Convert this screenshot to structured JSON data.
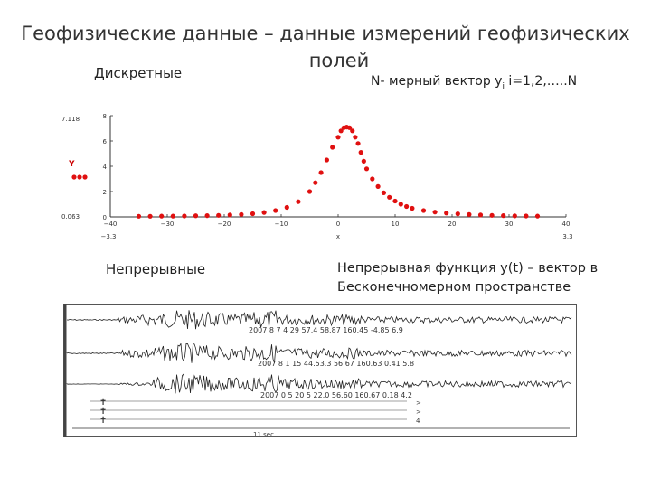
{
  "title": {
    "line1": "Геофизические данные – данные измерений геофизических",
    "line2": "полей"
  },
  "discrete_label": "Дискретные",
  "vector_label": {
    "prefix": "N- мерный вектор y",
    "sub": "i",
    "suffix": " i=1,2,…..N"
  },
  "continuous_label": "Непрерывные",
  "continuous_desc": {
    "line1": "Непрерывная функция y(t) – вектор в",
    "line2": "Бесконечномерном пространстве"
  },
  "chart_data": {
    "type": "scatter",
    "xlim": [
      -40,
      40
    ],
    "ylim": [
      0,
      8
    ],
    "x_ticks": [
      "−40",
      "−30",
      "−20",
      "−10",
      "0",
      "10",
      "20",
      "30",
      "40"
    ],
    "y_ticks": [
      "0",
      "2",
      "4",
      "6",
      "8"
    ],
    "left_labels": [
      "7.118",
      "Y",
      "0.063"
    ],
    "x_min_label": "−3.3",
    "x_max_label": "3.3",
    "x_mid_label": "x",
    "color": "#e01010",
    "series": [
      {
        "x": [
          -35,
          -33,
          -31,
          -29,
          -27,
          -25,
          -23,
          -21,
          -19,
          -17,
          -15,
          -13,
          -11,
          -9,
          -7,
          -5,
          -4,
          -3,
          -2,
          -1,
          0,
          0.5,
          1,
          1.5,
          2,
          2.5,
          3,
          3.5,
          4,
          4.5,
          5,
          6,
          7,
          8,
          9,
          10,
          11,
          12,
          13,
          15,
          17,
          19,
          21,
          23,
          25,
          27,
          29,
          31,
          33,
          35
        ],
        "y": [
          0.05,
          0.05,
          0.06,
          0.06,
          0.07,
          0.09,
          0.1,
          0.12,
          0.15,
          0.19,
          0.25,
          0.35,
          0.5,
          0.75,
          1.2,
          2.0,
          2.7,
          3.5,
          4.5,
          5.5,
          6.3,
          6.8,
          7.05,
          7.1,
          7.05,
          6.8,
          6.3,
          5.8,
          5.1,
          4.4,
          3.8,
          3.0,
          2.4,
          1.9,
          1.55,
          1.25,
          1.0,
          0.82,
          0.68,
          0.5,
          0.38,
          0.3,
          0.24,
          0.19,
          0.15,
          0.12,
          0.1,
          0.08,
          0.07,
          0.06
        ]
      }
    ]
  },
  "seismogram": {
    "trace1_label": "2007 8 7 4 29 57.4 58.87 160.45 -4.85 6.9",
    "trace2_label": "2007 8 1 15 44.53.3 56.67 160.63 0.41 5.8",
    "trace3_label": "2007 0 5 20 5 22.0 56.60 160.67 0.18 4.2",
    "time_label": "11 sec",
    "side_marks": [
      ">",
      ">",
      "4"
    ]
  }
}
